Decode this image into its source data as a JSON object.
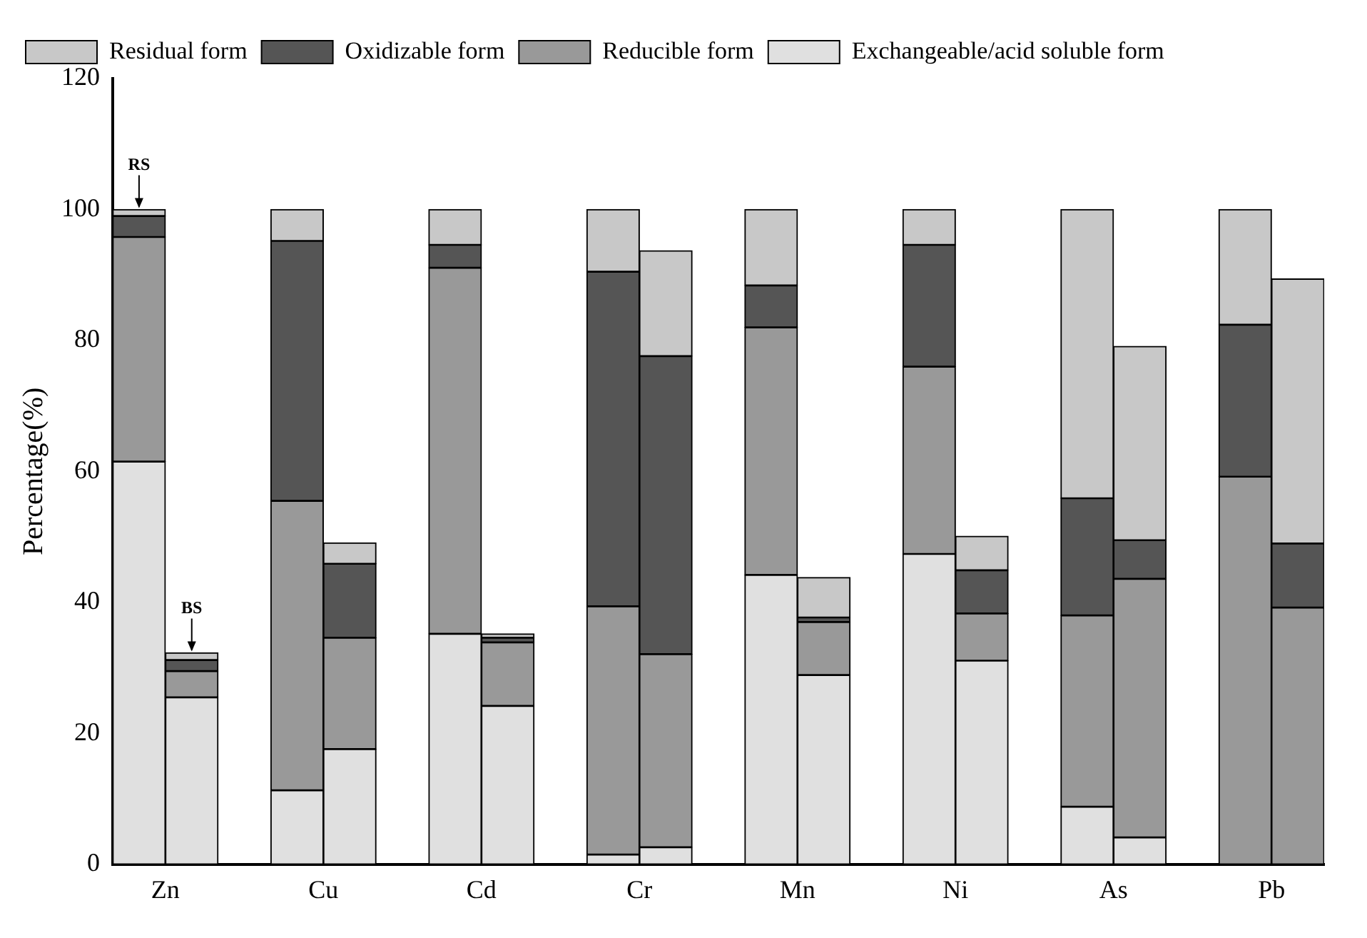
{
  "chart_data": {
    "type": "bar",
    "stacked": true,
    "ylabel": "Percentage(%)",
    "categories": [
      "Zn",
      null,
      null,
      "Cu",
      null,
      null,
      "Cd",
      null,
      null,
      "Cr",
      null,
      null,
      "Mn",
      null,
      null,
      "Ni",
      null,
      null,
      "As",
      null,
      null,
      "Pb",
      null
    ],
    "ylim": [
      0,
      120
    ],
    "yticks": [
      0,
      20,
      40,
      60,
      80,
      100,
      120
    ],
    "grid": false,
    "legend": "top left",
    "series": [
      {
        "name": "Exchangeable/acid soluble form",
        "color": "#e0e0e0",
        "values": [
          61.5,
          25.5,
          null,
          11.3,
          17.6,
          null,
          35.2,
          24.2,
          null,
          1.5,
          2.6,
          null,
          44.2,
          28.9,
          null,
          47.4,
          31.1,
          null,
          8.8,
          4.1,
          null,
          0,
          0
        ]
      },
      {
        "name": "Reducible form",
        "color": "#999999",
        "values": [
          34.3,
          4.0,
          null,
          44.2,
          17.0,
          null,
          55.9,
          9.7,
          null,
          37.9,
          29.5,
          null,
          37.8,
          8.1,
          null,
          28.6,
          7.2,
          null,
          29.2,
          39.5,
          null,
          59.2,
          39.2
        ]
      },
      {
        "name": "Oxidizable form",
        "color": "#555555",
        "values": [
          3.2,
          1.7,
          null,
          39.7,
          11.3,
          null,
          3.5,
          0.7,
          null,
          51.1,
          45.5,
          null,
          6.4,
          0.7,
          null,
          18.6,
          6.6,
          null,
          17.9,
          5.9,
          null,
          23.2,
          9.8
        ]
      },
      {
        "name": "Residual form",
        "color": "#c8c8c8",
        "values": [
          1.0,
          1.1,
          null,
          4.8,
          3.2,
          null,
          5.4,
          0.6,
          null,
          9.5,
          16.1,
          null,
          11.6,
          6.1,
          null,
          5.4,
          5.2,
          null,
          44.1,
          29.6,
          null,
          17.6,
          40.4
        ]
      }
    ],
    "annotations": [
      {
        "text": "RS",
        "x": "Zn",
        "y": 100
      },
      {
        "text": "BS",
        "y": 32.3
      }
    ]
  }
}
